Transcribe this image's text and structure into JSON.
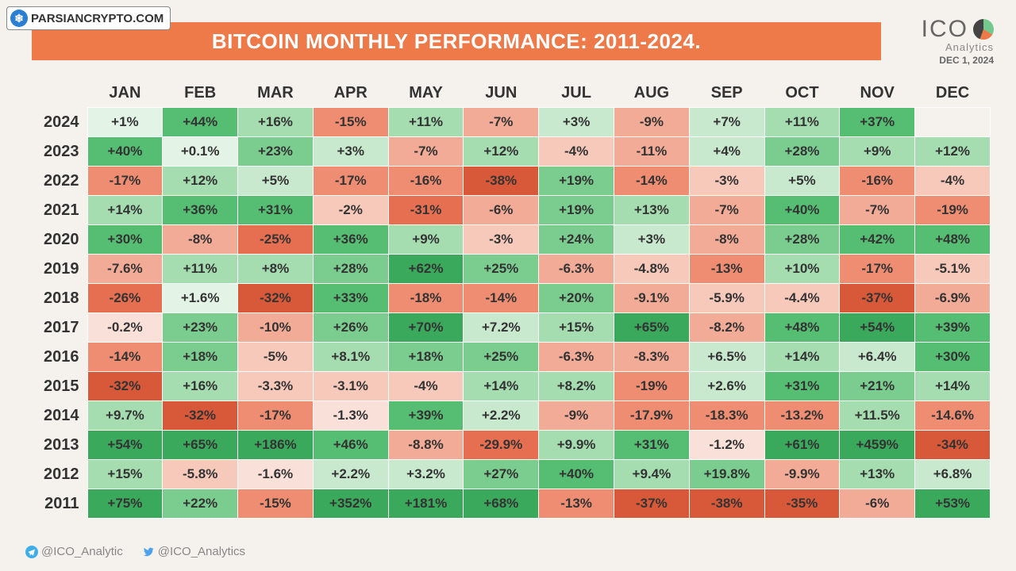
{
  "watermark_text": "PARSIANCRYPTO.COM",
  "title": "BITCOIN MONTHLY PERFORMANCE: 2011-2024.",
  "brand": {
    "name": "ICO",
    "sub": "Analytics",
    "date": "DEC 1, 2024"
  },
  "footer": {
    "telegram": "@ICO_Analytic",
    "twitter": "@ICO_Analytics"
  },
  "colors": {
    "title_bg": "#ee7a4a",
    "page_bg": "#f5f2ed",
    "text": "#333333",
    "telegram": "#3faee8",
    "twitter": "#4da3eb"
  },
  "heatmap_scale": {
    "pos": [
      "#e3f3e6",
      "#c9e9cf",
      "#a5dcb0",
      "#7bcd8f",
      "#55be72",
      "#3aa95c"
    ],
    "neg": [
      "#f9e0d8",
      "#f6c9bb",
      "#f2ab96",
      "#ee8d72",
      "#e76f51",
      "#d85939"
    ]
  },
  "months": [
    "JAN",
    "FEB",
    "MAR",
    "APR",
    "MAY",
    "JUN",
    "JUL",
    "AUG",
    "SEP",
    "OCT",
    "NOV",
    "DEC"
  ],
  "years": [
    "2024",
    "2023",
    "2022",
    "2021",
    "2020",
    "2019",
    "2018",
    "2017",
    "2016",
    "2015",
    "2014",
    "2013",
    "2012",
    "2011"
  ],
  "cells": {
    "2024": [
      {
        "t": "+1%",
        "v": 1
      },
      {
        "t": "+44%",
        "v": 44
      },
      {
        "t": "+16%",
        "v": 16
      },
      {
        "t": "-15%",
        "v": -15
      },
      {
        "t": "+11%",
        "v": 11
      },
      {
        "t": "-7%",
        "v": -7
      },
      {
        "t": "+3%",
        "v": 3
      },
      {
        "t": "-9%",
        "v": -9
      },
      {
        "t": "+7%",
        "v": 7
      },
      {
        "t": "+11%",
        "v": 11
      },
      {
        "t": "+37%",
        "v": 37
      },
      {
        "t": "",
        "v": null
      }
    ],
    "2023": [
      {
        "t": "+40%",
        "v": 40
      },
      {
        "t": "+0.1%",
        "v": 0.1
      },
      {
        "t": "+23%",
        "v": 23
      },
      {
        "t": "+3%",
        "v": 3
      },
      {
        "t": "-7%",
        "v": -7
      },
      {
        "t": "+12%",
        "v": 12
      },
      {
        "t": "-4%",
        "v": -4
      },
      {
        "t": "-11%",
        "v": -11
      },
      {
        "t": "+4%",
        "v": 4
      },
      {
        "t": "+28%",
        "v": 28
      },
      {
        "t": "+9%",
        "v": 9
      },
      {
        "t": "+12%",
        "v": 12
      }
    ],
    "2022": [
      {
        "t": "-17%",
        "v": -17
      },
      {
        "t": "+12%",
        "v": 12
      },
      {
        "t": "+5%",
        "v": 5
      },
      {
        "t": "-17%",
        "v": -17
      },
      {
        "t": "-16%",
        "v": -16
      },
      {
        "t": "-38%",
        "v": -38
      },
      {
        "t": "+19%",
        "v": 19
      },
      {
        "t": "-14%",
        "v": -14
      },
      {
        "t": "-3%",
        "v": -3
      },
      {
        "t": "+5%",
        "v": 5
      },
      {
        "t": "-16%",
        "v": -16
      },
      {
        "t": "-4%",
        "v": -4
      }
    ],
    "2021": [
      {
        "t": "+14%",
        "v": 14
      },
      {
        "t": "+36%",
        "v": 36
      },
      {
        "t": "+31%",
        "v": 31
      },
      {
        "t": "-2%",
        "v": -2
      },
      {
        "t": "-31%",
        "v": -31
      },
      {
        "t": "-6%",
        "v": -6
      },
      {
        "t": "+19%",
        "v": 19
      },
      {
        "t": "+13%",
        "v": 13
      },
      {
        "t": "-7%",
        "v": -7
      },
      {
        "t": "+40%",
        "v": 40
      },
      {
        "t": "-7%",
        "v": -7
      },
      {
        "t": "-19%",
        "v": -19
      }
    ],
    "2020": [
      {
        "t": "+30%",
        "v": 30
      },
      {
        "t": "-8%",
        "v": -8
      },
      {
        "t": "-25%",
        "v": -25
      },
      {
        "t": "+36%",
        "v": 36
      },
      {
        "t": "+9%",
        "v": 9
      },
      {
        "t": "-3%",
        "v": -3
      },
      {
        "t": "+24%",
        "v": 24
      },
      {
        "t": "+3%",
        "v": 3
      },
      {
        "t": "-8%",
        "v": -8
      },
      {
        "t": "+28%",
        "v": 28
      },
      {
        "t": "+42%",
        "v": 42
      },
      {
        "t": "+48%",
        "v": 48
      }
    ],
    "2019": [
      {
        "t": "-7.6%",
        "v": -7.6
      },
      {
        "t": "+11%",
        "v": 11
      },
      {
        "t": "+8%",
        "v": 8
      },
      {
        "t": "+28%",
        "v": 28
      },
      {
        "t": "+62%",
        "v": 62
      },
      {
        "t": "+25%",
        "v": 25
      },
      {
        "t": "-6.3%",
        "v": -6.3
      },
      {
        "t": "-4.8%",
        "v": -4.8
      },
      {
        "t": "-13%",
        "v": -13
      },
      {
        "t": "+10%",
        "v": 10
      },
      {
        "t": "-17%",
        "v": -17
      },
      {
        "t": "-5.1%",
        "v": -5.1
      }
    ],
    "2018": [
      {
        "t": "-26%",
        "v": -26
      },
      {
        "t": "+1.6%",
        "v": 1.6
      },
      {
        "t": "-32%",
        "v": -32
      },
      {
        "t": "+33%",
        "v": 33
      },
      {
        "t": "-18%",
        "v": -18
      },
      {
        "t": "-14%",
        "v": -14
      },
      {
        "t": "+20%",
        "v": 20
      },
      {
        "t": "-9.1%",
        "v": -9.1
      },
      {
        "t": "-5.9%",
        "v": -5.9
      },
      {
        "t": "-4.4%",
        "v": -4.4
      },
      {
        "t": "-37%",
        "v": -37
      },
      {
        "t": "-6.9%",
        "v": -6.9
      }
    ],
    "2017": [
      {
        "t": "-0.2%",
        "v": -0.2
      },
      {
        "t": "+23%",
        "v": 23
      },
      {
        "t": "-10%",
        "v": -10
      },
      {
        "t": "+26%",
        "v": 26
      },
      {
        "t": "+70%",
        "v": 70
      },
      {
        "t": "+7.2%",
        "v": 7.2
      },
      {
        "t": "+15%",
        "v": 15
      },
      {
        "t": "+65%",
        "v": 65
      },
      {
        "t": "-8.2%",
        "v": -8.2
      },
      {
        "t": "+48%",
        "v": 48
      },
      {
        "t": "+54%",
        "v": 54
      },
      {
        "t": "+39%",
        "v": 39
      }
    ],
    "2016": [
      {
        "t": "-14%",
        "v": -14
      },
      {
        "t": "+18%",
        "v": 18
      },
      {
        "t": "-5%",
        "v": -5
      },
      {
        "t": "+8.1%",
        "v": 8.1
      },
      {
        "t": "+18%",
        "v": 18
      },
      {
        "t": "+25%",
        "v": 25
      },
      {
        "t": "-6.3%",
        "v": -6.3
      },
      {
        "t": "-8.3%",
        "v": -8.3
      },
      {
        "t": "+6.5%",
        "v": 6.5
      },
      {
        "t": "+14%",
        "v": 14
      },
      {
        "t": "+6.4%",
        "v": 6.4
      },
      {
        "t": "+30%",
        "v": 30
      }
    ],
    "2015": [
      {
        "t": "-32%",
        "v": -32
      },
      {
        "t": "+16%",
        "v": 16
      },
      {
        "t": "-3.3%",
        "v": -3.3
      },
      {
        "t": "-3.1%",
        "v": -3.1
      },
      {
        "t": "-4%",
        "v": -4
      },
      {
        "t": "+14%",
        "v": 14
      },
      {
        "t": "+8.2%",
        "v": 8.2
      },
      {
        "t": "-19%",
        "v": -19
      },
      {
        "t": "+2.6%",
        "v": 2.6
      },
      {
        "t": "+31%",
        "v": 31
      },
      {
        "t": "+21%",
        "v": 21
      },
      {
        "t": "+14%",
        "v": 14
      }
    ],
    "2014": [
      {
        "t": "+9.7%",
        "v": 9.7
      },
      {
        "t": "-32%",
        "v": -32
      },
      {
        "t": "-17%",
        "v": -17
      },
      {
        "t": "-1.3%",
        "v": -1.3
      },
      {
        "t": "+39%",
        "v": 39
      },
      {
        "t": "+2.2%",
        "v": 2.2
      },
      {
        "t": "-9%",
        "v": -9
      },
      {
        "t": "-17.9%",
        "v": -17.9
      },
      {
        "t": "-18.3%",
        "v": -18.3
      },
      {
        "t": "-13.2%",
        "v": -13.2
      },
      {
        "t": "+11.5%",
        "v": 11.5
      },
      {
        "t": "-14.6%",
        "v": -14.6
      }
    ],
    "2013": [
      {
        "t": "+54%",
        "v": 54
      },
      {
        "t": "+65%",
        "v": 65
      },
      {
        "t": "+186%",
        "v": 186
      },
      {
        "t": "+46%",
        "v": 46
      },
      {
        "t": "-8.8%",
        "v": -8.8
      },
      {
        "t": "-29.9%",
        "v": -29.9
      },
      {
        "t": "+9.9%",
        "v": 9.9
      },
      {
        "t": "+31%",
        "v": 31
      },
      {
        "t": "-1.2%",
        "v": -1.2
      },
      {
        "t": "+61%",
        "v": 61
      },
      {
        "t": "+459%",
        "v": 459
      },
      {
        "t": "-34%",
        "v": -34
      }
    ],
    "2012": [
      {
        "t": "+15%",
        "v": 15
      },
      {
        "t": "-5.8%",
        "v": -5.8
      },
      {
        "t": "-1.6%",
        "v": -1.6
      },
      {
        "t": "+2.2%",
        "v": 2.2
      },
      {
        "t": "+3.2%",
        "v": 3.2
      },
      {
        "t": "+27%",
        "v": 27
      },
      {
        "t": "+40%",
        "v": 40
      },
      {
        "t": "+9.4%",
        "v": 9.4
      },
      {
        "t": "+19.8%",
        "v": 19.8
      },
      {
        "t": "-9.9%",
        "v": -9.9
      },
      {
        "t": "+13%",
        "v": 13
      },
      {
        "t": "+6.8%",
        "v": 6.8
      }
    ],
    "2011": [
      {
        "t": "+75%",
        "v": 75
      },
      {
        "t": "+22%",
        "v": 22
      },
      {
        "t": "-15%",
        "v": -15
      },
      {
        "t": "+352%",
        "v": 352
      },
      {
        "t": "+181%",
        "v": 181
      },
      {
        "t": "+68%",
        "v": 68
      },
      {
        "t": "-13%",
        "v": -13
      },
      {
        "t": "-37%",
        "v": -37
      },
      {
        "t": "-38%",
        "v": -38
      },
      {
        "t": "-35%",
        "v": -35
      },
      {
        "t": "-6%",
        "v": -6
      },
      {
        "t": "+53%",
        "v": 53
      }
    ]
  }
}
